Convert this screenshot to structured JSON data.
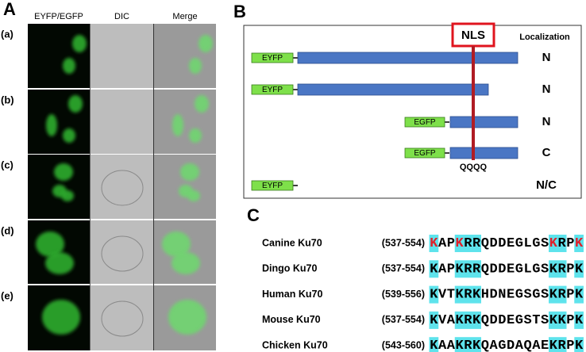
{
  "panel_a": {
    "label": "A",
    "columns": [
      "EYFP/EGFP",
      "DIC",
      "Merge"
    ],
    "rows": [
      "(a)",
      "(b)",
      "(c)",
      "(d)",
      "(e)"
    ]
  },
  "panel_b": {
    "label": "B",
    "nls": "NLS",
    "localization_header": "Localization",
    "constructs": [
      {
        "tag": "EYFP",
        "localization": "N"
      },
      {
        "tag": "EYFP",
        "localization": "N"
      },
      {
        "tag": "EGFP",
        "localization": "N"
      },
      {
        "tag": "EGFP",
        "localization": "C"
      },
      {
        "tag": "EYFP",
        "localization": "N/C"
      }
    ],
    "mutation": "QQQQ"
  },
  "panel_c": {
    "label": "C",
    "rows": [
      {
        "name": "Canine Ku70",
        "range": "(537-554)",
        "sequence": "KAPKRRQDDEGLGSKRPK"
      },
      {
        "name": "Dingo Ku70",
        "range": "(537-554)",
        "sequence": "KAPKRRQDDEGLGSKRPK"
      },
      {
        "name": "Human Ku70",
        "range": "(539-556)",
        "sequence": "KVTKRKHDNEGSGSKRPK"
      },
      {
        "name": "Mouse Ku70",
        "range": "(537-554)",
        "sequence": "KVAKRKQDDEGSTSKKPK"
      },
      {
        "name": "Chicken Ku70",
        "range": "(543-560)",
        "sequence": "KAAKRKQAGDAQAEKRPK"
      }
    ]
  }
}
